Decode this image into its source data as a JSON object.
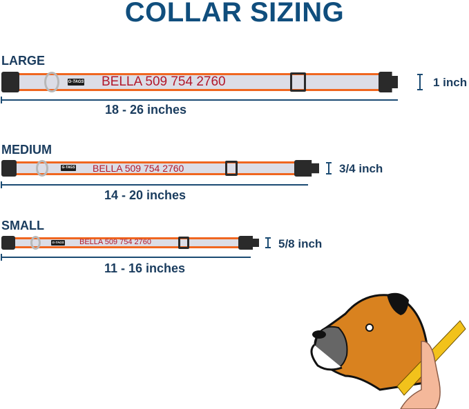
{
  "title": "COLLAR SIZING",
  "sizes": [
    {
      "label": "LARGE",
      "range": "18 - 26 inches",
      "width": "1 inch",
      "collar_text": "BELLA 509 754 2760",
      "logo": "G-TAGS"
    },
    {
      "label": "MEDIUM",
      "range": "14 - 20 inches",
      "width": "3/4 inch",
      "collar_text": "BELLA 509 754 2760",
      "logo": "G-TAGS"
    },
    {
      "label": "SMALL",
      "range": "11 - 16 inches",
      "width": "5/8 inch",
      "collar_text": "BELLA 509 754 2760",
      "logo": "G-TAGS"
    }
  ],
  "colors": {
    "title": "#104e7d",
    "strap_border": "#f0661f",
    "strap_fill": "#dcdde6",
    "collar_text": "#b2182b",
    "buckle": "#2a2a2a"
  },
  "illustration": "boxer-dog-neck-measuring-icon"
}
